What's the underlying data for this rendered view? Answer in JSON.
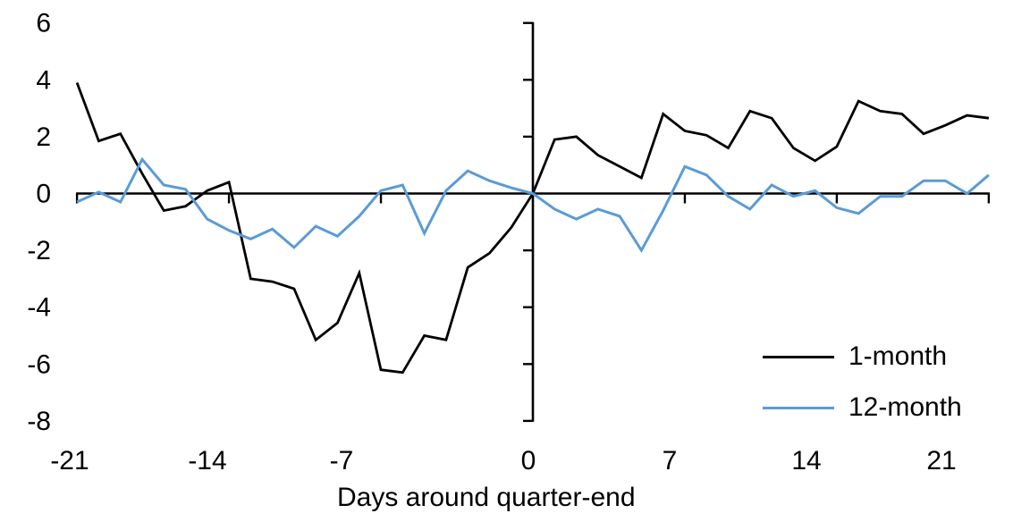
{
  "chart": {
    "x_axis": {
      "title": "Days around quarter-end",
      "tick_labels": [
        "-21",
        "-14",
        "-7",
        "0",
        "7",
        "14",
        "21"
      ],
      "tick_values": [
        -21,
        -14,
        -7,
        0,
        7,
        14,
        21
      ]
    },
    "y_axis": {
      "tick_labels": [
        "6",
        "4",
        "2",
        "0",
        "-2",
        "-4",
        "-6",
        "-8"
      ],
      "tick_values": [
        6,
        4,
        2,
        0,
        -2,
        -4,
        -6,
        -8
      ]
    },
    "legend": [
      {
        "label": "1-month",
        "color": "#000000"
      },
      {
        "label": "12-month",
        "color": "#5B9BD5"
      }
    ]
  },
  "chart_data": {
    "type": "line",
    "title": "",
    "xlabel": "Days around quarter-end",
    "ylabel": "",
    "xlim": [
      -21,
      21
    ],
    "ylim": [
      -8,
      6
    ],
    "x_ticks": [
      -21,
      -14,
      -7,
      0,
      7,
      14,
      21
    ],
    "y_ticks": [
      6,
      4,
      2,
      0,
      -2,
      -4,
      -6,
      -8
    ],
    "grid": false,
    "legend_position": "inside-lower-right",
    "x": [
      -21,
      -20,
      -19,
      -18,
      -17,
      -16,
      -15,
      -14,
      -13,
      -12,
      -11,
      -10,
      -9,
      -8,
      -7,
      -6,
      -5,
      -4,
      -3,
      -2,
      -1,
      0,
      1,
      2,
      3,
      4,
      5,
      6,
      7,
      8,
      9,
      10,
      11,
      12,
      13,
      14,
      15,
      16,
      17,
      18,
      19,
      20,
      21
    ],
    "series": [
      {
        "name": "1-month",
        "color": "#000000",
        "values": [
          3.9,
          1.85,
          2.1,
          0.7,
          -0.6,
          -0.45,
          0.1,
          0.4,
          -3.0,
          -3.1,
          -3.35,
          -5.15,
          -4.55,
          -2.8,
          -6.2,
          -6.3,
          -5.0,
          -5.15,
          -2.6,
          -2.1,
          -1.2,
          0.0,
          1.9,
          2.0,
          1.35,
          0.95,
          0.55,
          2.8,
          2.2,
          2.05,
          1.6,
          2.9,
          2.65,
          1.6,
          1.15,
          1.65,
          3.25,
          2.9,
          2.8,
          2.1,
          2.4,
          2.75,
          2.65
        ]
      },
      {
        "name": "12-month",
        "color": "#5B9BD5",
        "values": [
          -0.3,
          0.05,
          -0.3,
          1.2,
          0.3,
          0.15,
          -0.9,
          -1.3,
          -1.6,
          -1.25,
          -1.9,
          -1.15,
          -1.5,
          -0.8,
          0.1,
          0.3,
          -1.4,
          0.1,
          0.8,
          0.45,
          0.2,
          0.0,
          -0.55,
          -0.9,
          -0.55,
          -0.8,
          -2.0,
          -0.6,
          0.95,
          0.65,
          -0.1,
          -0.55,
          0.3,
          -0.1,
          0.1,
          -0.5,
          -0.7,
          -0.1,
          -0.1,
          0.45,
          0.45,
          0.0,
          0.65
        ]
      }
    ]
  }
}
